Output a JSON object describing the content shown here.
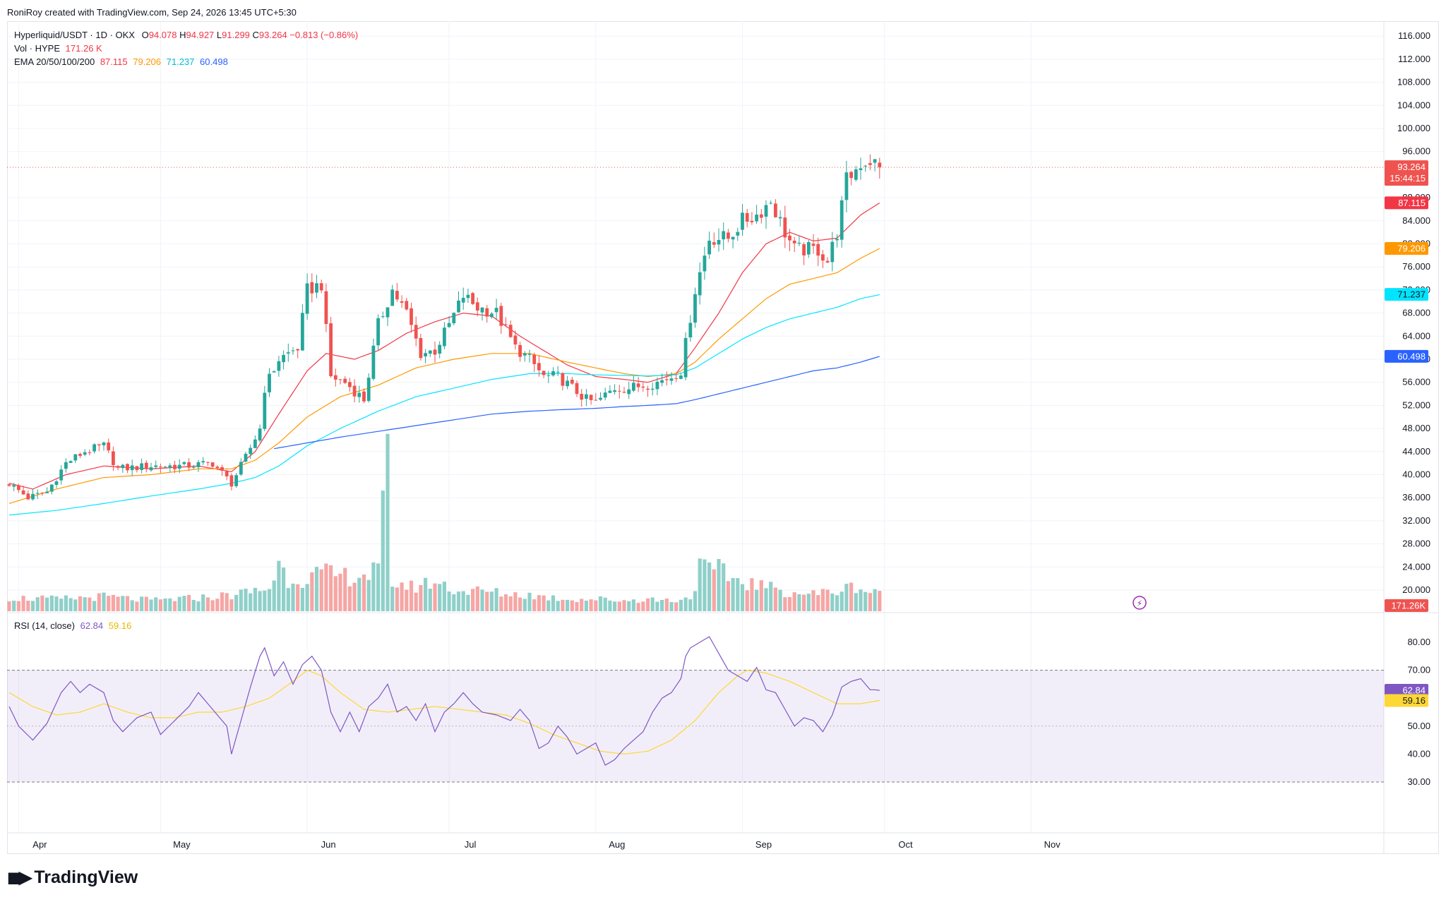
{
  "credit": "RoniRoy created with TradingView.com, Sep 24, 2026 13:45 UTC+5:30",
  "brand": "TradingView",
  "legend": {
    "symbol": "Hyperliquid/USDT · 1D · OKX",
    "o_label": "O",
    "o_value": "94.078",
    "h_label": "H",
    "h_value": "94.927",
    "l_label": "L",
    "l_value": "91.299",
    "c_label": "C",
    "c_value": "93.264",
    "change": "−0.813 (−0.86%)",
    "vol_label": "Vol · HYPE",
    "vol_value": "171.26 K",
    "ema_label": "EMA 20/50/100/200",
    "ema20": "87.115",
    "ema50": "79.206",
    "ema100": "71.237",
    "ema200": "60.498"
  },
  "rsi_legend": {
    "label": "RSI (14, close)",
    "rsi": "62.84",
    "ma": "59.16"
  },
  "price_tags": {
    "last": "93.264",
    "countdown": "15:44:15",
    "ema20": "87.115",
    "ema50": "79.206",
    "ema100": "71.237",
    "ema200": "60.498",
    "volume": "171.26K",
    "rsi": "62.84",
    "rsi_ma": "59.16"
  },
  "colors": {
    "up": "#26a69a",
    "down": "#ef5350",
    "ema20": "#f23645",
    "ema50": "#ff9800",
    "ema100": "#00e5ff",
    "ema200": "#2962ff",
    "rsi": "#7e57c2",
    "rsi_ma": "#fdd835",
    "vol_up": "#8fd0c9",
    "vol_down": "#f5a6a5"
  },
  "chart_data": {
    "type": "candlestick",
    "title": "Hyperliquid/USDT · 1D · OKX",
    "price_axis_ticks": [
      "116.000",
      "112.000",
      "108.000",
      "104.000",
      "100.000",
      "96.000",
      "88.000",
      "84.000",
      "80.000",
      "76.000",
      "72.000",
      "68.000",
      "64.000",
      "60.000",
      "56.000",
      "52.000",
      "48.000",
      "44.000",
      "40.000",
      "36.000",
      "32.000",
      "28.000",
      "24.000",
      "20.000"
    ],
    "price_axis_values": [
      116,
      112,
      108,
      104,
      100,
      96,
      88,
      84,
      80,
      76,
      72,
      68,
      64,
      60,
      56,
      52,
      48,
      44,
      40,
      36,
      32,
      28,
      24,
      20
    ],
    "price_range": [
      18,
      120
    ],
    "time_axis_labels": [
      "Apr",
      "May",
      "Jun",
      "Jul",
      "Aug",
      "Sep",
      "Oct",
      "Nov"
    ],
    "time_axis_day_index": [
      2,
      32,
      63,
      93,
      124,
      155,
      185,
      216
    ],
    "x_start_date": "2026-03-31",
    "rsi_axis_ticks": [
      "80.00",
      "70.00",
      "50.00",
      "40.00",
      "30.00"
    ],
    "rsi_axis_values": [
      80,
      70,
      50,
      40,
      30
    ],
    "rsi_range": [
      25,
      85
    ],
    "rsi_band": [
      30,
      70
    ],
    "price_keypoints": [
      [
        0,
        38.5
      ],
      [
        4,
        36
      ],
      [
        8,
        37
      ],
      [
        12,
        42
      ],
      [
        16,
        44
      ],
      [
        20,
        45
      ],
      [
        23,
        41
      ],
      [
        30,
        41.5
      ],
      [
        37,
        41.5
      ],
      [
        43,
        42
      ],
      [
        47,
        38.5
      ],
      [
        50,
        43
      ],
      [
        53,
        48
      ],
      [
        54,
        55
      ],
      [
        57,
        60
      ],
      [
        61,
        62
      ],
      [
        63,
        72
      ],
      [
        66,
        73
      ],
      [
        68,
        57
      ],
      [
        71,
        56
      ],
      [
        75,
        53
      ],
      [
        78,
        66
      ],
      [
        81,
        72
      ],
      [
        84,
        68
      ],
      [
        87,
        61
      ],
      [
        90,
        61.5
      ],
      [
        93,
        66
      ],
      [
        96,
        71
      ],
      [
        99,
        69
      ],
      [
        103,
        68
      ],
      [
        107,
        62
      ],
      [
        110,
        60
      ],
      [
        113,
        57
      ],
      [
        116,
        57
      ],
      [
        119,
        55
      ],
      [
        122,
        53
      ],
      [
        124,
        52.5
      ],
      [
        128,
        55
      ],
      [
        131,
        55
      ],
      [
        134,
        55.5
      ],
      [
        137,
        56
      ],
      [
        140,
        57
      ],
      [
        142,
        58
      ],
      [
        145,
        72
      ],
      [
        148,
        81
      ],
      [
        152,
        81
      ],
      [
        155,
        84
      ],
      [
        158,
        85
      ],
      [
        161,
        87.5
      ],
      [
        164,
        82
      ],
      [
        166,
        79
      ],
      [
        169,
        79
      ],
      [
        171,
        79
      ],
      [
        173,
        77
      ],
      [
        175,
        82
      ],
      [
        177,
        91
      ],
      [
        180,
        94
      ],
      [
        182,
        94.5
      ],
      [
        184,
        93.3
      ]
    ],
    "ema_keypoints": {
      "ema20": [
        [
          0,
          38.5
        ],
        [
          5,
          37.5
        ],
        [
          12,
          40
        ],
        [
          20,
          41.5
        ],
        [
          30,
          41
        ],
        [
          40,
          41.5
        ],
        [
          47,
          40.5
        ],
        [
          52,
          44
        ],
        [
          57,
          50.5
        ],
        [
          63,
          58
        ],
        [
          67,
          61
        ],
        [
          73,
          60
        ],
        [
          78,
          61.5
        ],
        [
          84,
          64.5
        ],
        [
          90,
          66.5
        ],
        [
          96,
          68
        ],
        [
          102,
          67.5
        ],
        [
          108,
          64
        ],
        [
          113,
          61.5
        ],
        [
          118,
          59
        ],
        [
          124,
          57
        ],
        [
          130,
          56.5
        ],
        [
          135,
          56
        ],
        [
          141,
          57.5
        ],
        [
          145,
          62
        ],
        [
          150,
          68
        ],
        [
          155,
          75
        ],
        [
          160,
          80
        ],
        [
          165,
          82
        ],
        [
          170,
          80.5
        ],
        [
          175,
          81
        ],
        [
          180,
          85
        ],
        [
          184,
          87.1
        ]
      ],
      "ema50": [
        [
          0,
          35
        ],
        [
          10,
          37.5
        ],
        [
          20,
          39.5
        ],
        [
          30,
          40
        ],
        [
          40,
          41
        ],
        [
          47,
          41
        ],
        [
          52,
          42.5
        ],
        [
          57,
          45.5
        ],
        [
          63,
          50
        ],
        [
          70,
          53.5
        ],
        [
          78,
          55.5
        ],
        [
          86,
          58.5
        ],
        [
          94,
          60
        ],
        [
          102,
          61
        ],
        [
          110,
          61
        ],
        [
          118,
          59.5
        ],
        [
          124,
          58.5
        ],
        [
          130,
          57.5
        ],
        [
          135,
          57
        ],
        [
          141,
          57.5
        ],
        [
          145,
          59.5
        ],
        [
          150,
          63.5
        ],
        [
          155,
          67
        ],
        [
          160,
          70.5
        ],
        [
          165,
          73
        ],
        [
          170,
          74
        ],
        [
          175,
          75
        ],
        [
          180,
          77.5
        ],
        [
          184,
          79.2
        ]
      ],
      "ema100": [
        [
          0,
          33
        ],
        [
          10,
          33.8
        ],
        [
          20,
          35
        ],
        [
          30,
          36.3
        ],
        [
          40,
          37.5
        ],
        [
          47,
          38.5
        ],
        [
          52,
          39.5
        ],
        [
          57,
          41.5
        ],
        [
          63,
          45
        ],
        [
          70,
          48
        ],
        [
          78,
          51
        ],
        [
          86,
          53.5
        ],
        [
          94,
          55
        ],
        [
          102,
          56.5
        ],
        [
          110,
          57.5
        ],
        [
          118,
          57.5
        ],
        [
          124,
          57.3
        ],
        [
          130,
          57.2
        ],
        [
          135,
          57.1
        ],
        [
          141,
          57.3
        ],
        [
          145,
          58.5
        ],
        [
          150,
          61
        ],
        [
          155,
          63.5
        ],
        [
          160,
          65.5
        ],
        [
          165,
          67
        ],
        [
          170,
          68
        ],
        [
          175,
          69
        ],
        [
          180,
          70.5
        ],
        [
          184,
          71.2
        ]
      ],
      "ema200": [
        [
          56,
          44.5
        ],
        [
          63,
          45.5
        ],
        [
          70,
          46.5
        ],
        [
          78,
          47.5
        ],
        [
          86,
          48.5
        ],
        [
          94,
          49.5
        ],
        [
          102,
          50.5
        ],
        [
          110,
          51
        ],
        [
          118,
          51.3
        ],
        [
          124,
          51.5
        ],
        [
          130,
          51.8
        ],
        [
          135,
          52
        ],
        [
          141,
          52.3
        ],
        [
          145,
          53
        ],
        [
          150,
          54
        ],
        [
          155,
          55
        ],
        [
          160,
          56
        ],
        [
          165,
          57
        ],
        [
          170,
          58
        ],
        [
          175,
          58.5
        ],
        [
          180,
          59.5
        ],
        [
          184,
          60.5
        ]
      ]
    },
    "volume_keypoints": [
      [
        0,
        10
      ],
      [
        10,
        9
      ],
      [
        20,
        11
      ],
      [
        30,
        8
      ],
      [
        40,
        10
      ],
      [
        47,
        12
      ],
      [
        50,
        14
      ],
      [
        55,
        17
      ],
      [
        57,
        35
      ],
      [
        59,
        24
      ],
      [
        63,
        25
      ],
      [
        66,
        28
      ],
      [
        70,
        26
      ],
      [
        75,
        27
      ],
      [
        78,
        30
      ],
      [
        79,
        70
      ],
      [
        80,
        110
      ],
      [
        81,
        22
      ],
      [
        85,
        18
      ],
      [
        90,
        22
      ],
      [
        95,
        15
      ],
      [
        100,
        15
      ],
      [
        105,
        13
      ],
      [
        110,
        12
      ],
      [
        115,
        10
      ],
      [
        120,
        9
      ],
      [
        125,
        9
      ],
      [
        130,
        8
      ],
      [
        135,
        9
      ],
      [
        140,
        8
      ],
      [
        144,
        10
      ],
      [
        146,
        32
      ],
      [
        148,
        30
      ],
      [
        150,
        30
      ],
      [
        152,
        26
      ],
      [
        155,
        22
      ],
      [
        158,
        20
      ],
      [
        160,
        18
      ],
      [
        165,
        14
      ],
      [
        170,
        13
      ],
      [
        175,
        15
      ],
      [
        179,
        19
      ],
      [
        182,
        14
      ],
      [
        184,
        17
      ]
    ],
    "rsi_keypoints": [
      [
        0,
        57
      ],
      [
        2,
        50
      ],
      [
        5,
        45
      ],
      [
        8,
        51
      ],
      [
        11,
        62
      ],
      [
        13,
        66
      ],
      [
        15,
        62
      ],
      [
        17,
        65
      ],
      [
        20,
        62
      ],
      [
        22,
        52
      ],
      [
        24,
        48
      ],
      [
        27,
        53
      ],
      [
        30,
        55
      ],
      [
        32,
        47
      ],
      [
        35,
        52
      ],
      [
        38,
        57
      ],
      [
        40,
        62
      ],
      [
        43,
        56
      ],
      [
        46,
        50
      ],
      [
        47,
        40
      ],
      [
        49,
        52
      ],
      [
        51,
        64
      ],
      [
        53,
        75
      ],
      [
        54,
        78
      ],
      [
        56,
        68
      ],
      [
        58,
        73
      ],
      [
        60,
        65
      ],
      [
        62,
        72
      ],
      [
        64,
        75
      ],
      [
        66,
        70
      ],
      [
        68,
        55
      ],
      [
        70,
        48
      ],
      [
        72,
        55
      ],
      [
        74,
        48
      ],
      [
        76,
        57
      ],
      [
        78,
        60
      ],
      [
        80,
        65
      ],
      [
        82,
        55
      ],
      [
        84,
        57
      ],
      [
        86,
        52
      ],
      [
        88,
        58
      ],
      [
        90,
        48
      ],
      [
        92,
        55
      ],
      [
        94,
        58
      ],
      [
        96,
        62
      ],
      [
        98,
        58
      ],
      [
        100,
        55
      ],
      [
        103,
        54
      ],
      [
        106,
        52
      ],
      [
        108,
        56
      ],
      [
        110,
        52
      ],
      [
        112,
        42
      ],
      [
        114,
        44
      ],
      [
        116,
        50
      ],
      [
        118,
        46
      ],
      [
        120,
        40
      ],
      [
        122,
        42
      ],
      [
        124,
        44
      ],
      [
        126,
        36
      ],
      [
        128,
        38
      ],
      [
        130,
        42
      ],
      [
        132,
        45
      ],
      [
        134,
        48
      ],
      [
        136,
        55
      ],
      [
        138,
        60
      ],
      [
        140,
        62
      ],
      [
        142,
        67
      ],
      [
        143,
        75
      ],
      [
        144,
        78
      ],
      [
        146,
        80
      ],
      [
        148,
        82
      ],
      [
        150,
        76
      ],
      [
        152,
        70
      ],
      [
        154,
        68
      ],
      [
        156,
        66
      ],
      [
        158,
        71
      ],
      [
        160,
        63
      ],
      [
        162,
        62
      ],
      [
        164,
        56
      ],
      [
        166,
        50
      ],
      [
        168,
        53
      ],
      [
        170,
        52
      ],
      [
        172,
        48
      ],
      [
        174,
        54
      ],
      [
        176,
        64
      ],
      [
        178,
        66
      ],
      [
        180,
        67
      ],
      [
        182,
        63
      ],
      [
        183,
        63
      ],
      [
        184,
        62.8
      ]
    ],
    "rsi_ma_keypoints": [
      [
        0,
        62
      ],
      [
        5,
        57
      ],
      [
        10,
        54
      ],
      [
        15,
        55
      ],
      [
        20,
        58
      ],
      [
        25,
        55
      ],
      [
        30,
        53
      ],
      [
        35,
        53
      ],
      [
        40,
        55
      ],
      [
        45,
        55
      ],
      [
        50,
        57
      ],
      [
        55,
        60
      ],
      [
        60,
        66
      ],
      [
        63,
        70
      ],
      [
        66,
        68
      ],
      [
        70,
        62
      ],
      [
        75,
        56
      ],
      [
        80,
        55
      ],
      [
        85,
        56
      ],
      [
        90,
        57
      ],
      [
        95,
        56
      ],
      [
        100,
        55
      ],
      [
        105,
        54
      ],
      [
        110,
        51
      ],
      [
        115,
        47
      ],
      [
        120,
        44
      ],
      [
        125,
        41
      ],
      [
        130,
        40
      ],
      [
        135,
        41
      ],
      [
        140,
        45
      ],
      [
        145,
        52
      ],
      [
        150,
        62
      ],
      [
        154,
        68
      ],
      [
        156,
        70
      ],
      [
        160,
        69
      ],
      [
        165,
        66
      ],
      [
        170,
        62
      ],
      [
        175,
        58
      ],
      [
        180,
        58
      ],
      [
        184,
        59.2
      ]
    ],
    "last_close": 93.264
  }
}
